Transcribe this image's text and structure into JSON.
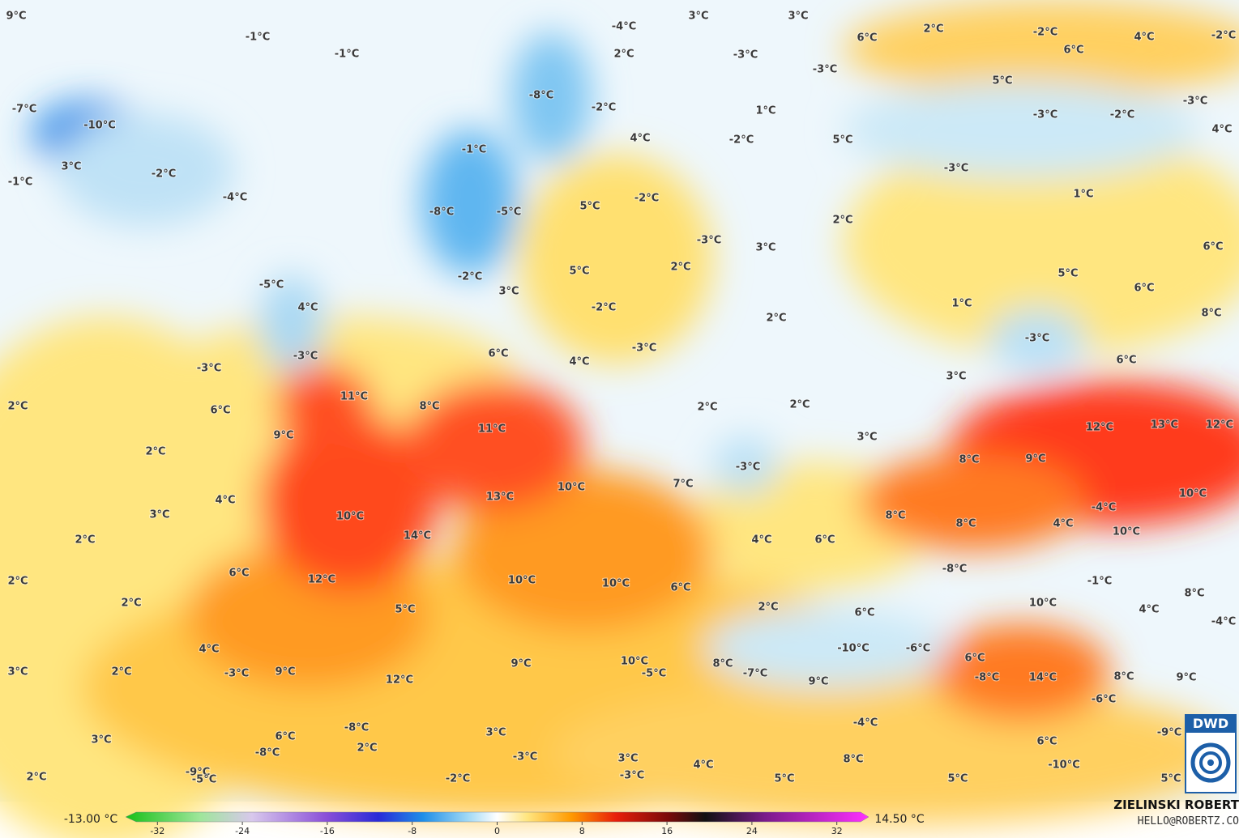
{
  "map": {
    "labels": [
      "9°C",
      "-1°C",
      "-1°C",
      "-4°C",
      "3°C",
      "3°C",
      "6°C",
      "2°C",
      "-2°C",
      "4°C",
      "-2°C",
      "6°C",
      "2°C",
      "-3°C",
      "-3°C",
      "5°C",
      "-3°C",
      "-7°C",
      "-10°C",
      "-8°C",
      "-2°C",
      "1°C",
      "-3°C",
      "-2°C",
      "4°C",
      "3°C",
      "-2°C",
      "-1°C",
      "4°C",
      "-2°C",
      "5°C",
      "-3°C",
      "-1°C",
      "-4°C",
      "-8°C",
      "-5°C",
      "5°C",
      "-2°C",
      "1°C",
      "2°C",
      "-3°C",
      "3°C",
      "6°C",
      "-5°C",
      "-2°C",
      "5°C",
      "2°C",
      "5°C",
      "6°C",
      "4°C",
      "3°C",
      "-2°C",
      "2°C",
      "1°C",
      "8°C",
      "-3°C",
      "-3°C",
      "6°C",
      "4°C",
      "-3°C",
      "-3°C",
      "6°C",
      "3°C",
      "2°C",
      "11°C",
      "6°C",
      "8°C",
      "2°C",
      "2°C",
      "12°C",
      "13°C",
      "12°C",
      "9°C",
      "11°C",
      "3°C",
      "2°C",
      "-3°C",
      "8°C",
      "9°C",
      "4°C",
      "13°C",
      "10°C",
      "7°C",
      "10°C",
      "3°C",
      "10°C",
      "-4°C",
      "8°C",
      "8°C",
      "4°C",
      "10°C",
      "2°C",
      "14°C",
      "4°C",
      "6°C",
      "6°C",
      "12°C",
      "10°C",
      "10°C",
      "6°C",
      "-8°C",
      "-1°C",
      "8°C",
      "2°C",
      "2°C",
      "5°C",
      "2°C",
      "6°C",
      "10°C",
      "4°C",
      "-4°C",
      "4°C",
      "-10°C",
      "-6°C",
      "3°C",
      "2°C",
      "-3°C",
      "9°C",
      "9°C",
      "10°C",
      "-5°C",
      "8°C",
      "-7°C",
      "6°C",
      "-8°C",
      "14°C",
      "8°C",
      "9°C",
      "12°C",
      "9°C",
      "-6°C",
      "3°C",
      "6°C",
      "-8°C",
      "-8°C",
      "3°C",
      "-4°C",
      "6°C",
      "-9°C",
      "2°C",
      "-3°C",
      "3°C",
      "4°C",
      "8°C",
      "-10°C",
      "2°C",
      "-9°C",
      "-5°C",
      "-2°C",
      "-3°C",
      "5°C",
      "5°C",
      "5°C"
    ],
    "colorbar": {
      "min_label": "-13.00 °C",
      "max_label": "14.50 °C",
      "range": [
        -35,
        35
      ],
      "ticks": [
        -32,
        -24,
        -16,
        -8,
        0,
        8,
        16,
        24,
        32
      ]
    },
    "author": "ZIELINSKI ROBERT",
    "email": "HELLO@ROBERTZ.CO",
    "logo": "DWD"
  }
}
